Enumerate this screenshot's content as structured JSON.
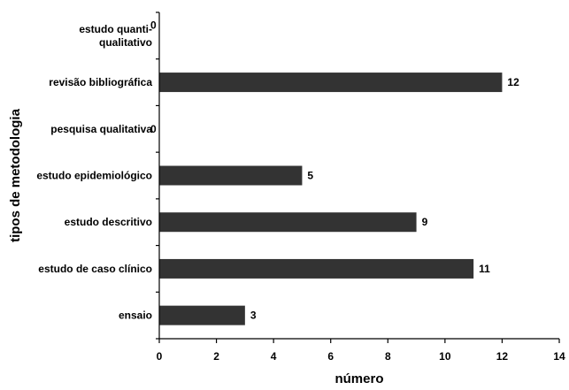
{
  "chart_data": {
    "type": "bar",
    "orientation": "horizontal",
    "categories": [
      [
        "estudo quanti-",
        "qualitativo"
      ],
      [
        "revisão bibliográfica"
      ],
      [
        "pesquisa qualitativa"
      ],
      [
        "estudo epidemiológico"
      ],
      [
        "estudo descritivo"
      ],
      [
        "estudo de caso clínico"
      ],
      [
        "ensaio"
      ]
    ],
    "values": [
      0,
      12,
      0,
      5,
      9,
      11,
      3
    ],
    "data_labels": [
      "0",
      "12",
      "0",
      "5",
      "9",
      "11",
      "3"
    ],
    "xlabel": "número",
    "ylabel": "tipos de metodologia",
    "xlim": [
      0,
      14
    ],
    "x_ticks": [
      0,
      2,
      4,
      6,
      8,
      10,
      12,
      14
    ],
    "grid": false,
    "legend": "none",
    "colors": {
      "bar": "#333333",
      "axis": "#000000"
    }
  }
}
